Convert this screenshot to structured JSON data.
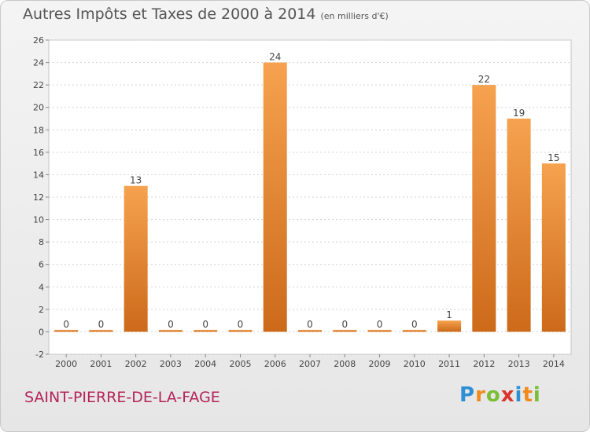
{
  "title": "Autres Impôts et Taxes de 2000 à 2014",
  "subtitle": "(en milliers d'€)",
  "commune": "SAINT-PIERRE-DE-LA-FAGE",
  "logo": {
    "letters": [
      "P",
      "r",
      "o",
      "x",
      "i",
      "t",
      "i"
    ]
  },
  "colors": {
    "bar_light": "#f6a24f",
    "bar_dark": "#cc6a1a",
    "accent": "#b5245a"
  },
  "chart_data": {
    "type": "bar",
    "categories": [
      "2000",
      "2001",
      "2002",
      "2003",
      "2004",
      "2005",
      "2006",
      "2007",
      "2008",
      "2009",
      "2010",
      "2011",
      "2012",
      "2013",
      "2014"
    ],
    "values": [
      0,
      0,
      13,
      0,
      0,
      0,
      24,
      0,
      0,
      0,
      0,
      1,
      22,
      19,
      15
    ],
    "ylim": [
      -2,
      26
    ],
    "yticks": [
      -2,
      0,
      2,
      4,
      6,
      8,
      10,
      12,
      14,
      16,
      18,
      20,
      22,
      24,
      26
    ],
    "grid": true,
    "data_labels": true
  }
}
